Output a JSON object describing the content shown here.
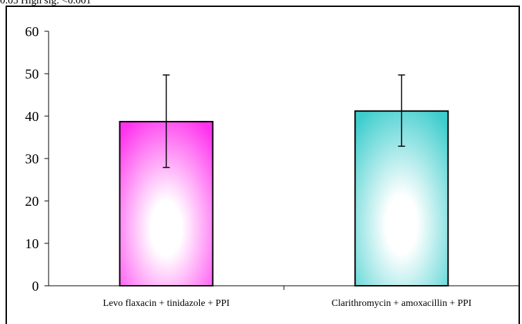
{
  "header": {
    "caption": "0.05    High sig: <0.001"
  },
  "chart_data": {
    "type": "bar",
    "categories": [
      "Levo flaxacin + tinidazole + PPI",
      "Clarithromycin + amoxacillin + PPI"
    ],
    "series": [
      {
        "values": [
          38.7,
          41.2
        ],
        "error_lower": [
          27.9,
          32.9
        ],
        "error_upper": [
          49.7,
          49.7
        ],
        "colors": [
          "#ff33ee",
          "#3ecdcd"
        ]
      }
    ],
    "ylim": [
      0,
      60
    ],
    "yticks": [
      "0",
      "10",
      "20",
      "30",
      "40",
      "50",
      "60"
    ],
    "grid": false,
    "legend": "none"
  }
}
